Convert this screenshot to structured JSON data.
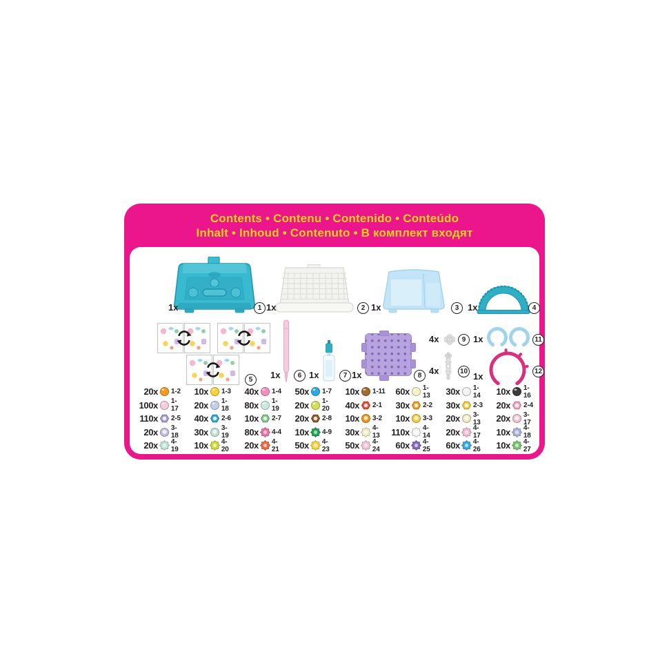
{
  "header": {
    "line1": "Contents • Contenu • Contenido • Conteúdo",
    "line2": "Inhalt • Inhoud • Contenuto • В комплект входят"
  },
  "colors": {
    "card_pink": "#EC168C",
    "header_yellow": "#FFD21E",
    "ink": "#231F20",
    "machine_teal": "#35B8CF",
    "teal_dark": "#1D94AC",
    "tray_white": "#F3F3F0",
    "case_blue": "#C3E5F7",
    "pegboard_purple": "#B7A3DE",
    "pen_pink": "#F4CCDE",
    "ring_blue": "#9FD4EC",
    "band_pink": "#D6317E",
    "part_gray": "#DCDCDC"
  },
  "products": [
    {
      "num": "1",
      "count": "1x",
      "name": "bead-machine-case"
    },
    {
      "num": "2",
      "count": "1x",
      "name": "bead-storage-tray"
    },
    {
      "num": "3",
      "count": "1x",
      "name": "carry-case"
    },
    {
      "num": "4",
      "count": "1x",
      "name": "arch-display-stand"
    },
    {
      "num": "5",
      "count": "",
      "name": "double-sided-template-sheets"
    },
    {
      "num": "6",
      "count": "1x",
      "name": "bead-pen"
    },
    {
      "num": "7",
      "count": "1x",
      "name": "water-sprayer"
    },
    {
      "num": "8",
      "count": "1x",
      "name": "layout-pegboard"
    },
    {
      "num": "9",
      "count": "4x",
      "name": "small-flower-part"
    },
    {
      "num": "10",
      "count": "4x",
      "name": "connector-part"
    },
    {
      "num": "11",
      "count": "1x",
      "name": "ring-bases"
    },
    {
      "num": "12",
      "count": "1x",
      "name": "tiara-band"
    }
  ],
  "beads": [
    {
      "count": "20x",
      "code": "1-2",
      "shape": "round",
      "color": "#F49B20"
    },
    {
      "count": "10x",
      "code": "1-3",
      "shape": "round",
      "color": "#FBD23B"
    },
    {
      "count": "40x",
      "code": "1-4",
      "shape": "round",
      "color": "#F290BC"
    },
    {
      "count": "50x",
      "code": "1-7",
      "shape": "round",
      "color": "#2FA9E1"
    },
    {
      "count": "10x",
      "code": "1-11",
      "shape": "round",
      "color": "#9F6A33"
    },
    {
      "count": "60x",
      "code": "1-13",
      "shape": "round",
      "color": "#F6F0C5"
    },
    {
      "count": "30x",
      "code": "1-14",
      "shape": "round",
      "color": "#F2F2F2"
    },
    {
      "count": "10x",
      "code": "1-16",
      "shape": "round",
      "color": "#3B3B3B"
    },
    {
      "count": "100x",
      "code": "1-17",
      "shape": "round",
      "color": "#F7CBDD"
    },
    {
      "count": "20x",
      "code": "1-18",
      "shape": "round",
      "color": "#C6CDE6"
    },
    {
      "count": "80x",
      "code": "1-19",
      "shape": "round",
      "color": "#CFE8DE"
    },
    {
      "count": "20x",
      "code": "1-20",
      "shape": "round",
      "color": "#D5DF56"
    },
    {
      "count": "40x",
      "code": "2-1",
      "shape": "jewel",
      "color": "#E94F35"
    },
    {
      "count": "30x",
      "code": "2-2",
      "shape": "jewel",
      "color": "#F59D1F"
    },
    {
      "count": "30x",
      "code": "2-3",
      "shape": "jewel",
      "color": "#F6CE3B"
    },
    {
      "count": "20x",
      "code": "2-4",
      "shape": "jewel",
      "color": "#F2A3C3"
    },
    {
      "count": "110x",
      "code": "2-5",
      "shape": "jewel",
      "color": "#A99FD6"
    },
    {
      "count": "40x",
      "code": "2-6",
      "shape": "jewel",
      "color": "#2FA9E1"
    },
    {
      "count": "10x",
      "code": "2-7",
      "shape": "jewel",
      "color": "#7ECC83"
    },
    {
      "count": "20x",
      "code": "2-8",
      "shape": "jewel",
      "color": "#8E5B2B"
    },
    {
      "count": "10x",
      "code": "3-2",
      "shape": "pearl",
      "color": "#F0941E"
    },
    {
      "count": "10x",
      "code": "3-3",
      "shape": "pearl",
      "color": "#F6CB45"
    },
    {
      "count": "20x",
      "code": "3-13",
      "shape": "pearl",
      "color": "#EDE8C0"
    },
    {
      "count": "20x",
      "code": "3-17",
      "shape": "pearl",
      "color": "#F0C3CF"
    },
    {
      "count": "20x",
      "code": "3-18",
      "shape": "pearl",
      "color": "#C3BEE2"
    },
    {
      "count": "30x",
      "code": "3-19",
      "shape": "pearl",
      "color": "#BFE1D6"
    },
    {
      "count": "80x",
      "code": "4-4",
      "shape": "polygon",
      "color": "#F0709F"
    },
    {
      "count": "10x",
      "code": "4-9",
      "shape": "polygon",
      "color": "#1FA352"
    },
    {
      "count": "30x",
      "code": "4-13",
      "shape": "polygon",
      "color": "#F3EFC5"
    },
    {
      "count": "110x",
      "code": "4-14",
      "shape": "polygon",
      "color": "#F5F5F5"
    },
    {
      "count": "20x",
      "code": "4-17",
      "shape": "polygon",
      "color": "#F3B9D0"
    },
    {
      "count": "10x",
      "code": "4-18",
      "shape": "polygon",
      "color": "#ABB1DD"
    },
    {
      "count": "20x",
      "code": "4-19",
      "shape": "polygon",
      "color": "#BFE2D9"
    },
    {
      "count": "10x",
      "code": "4-20",
      "shape": "polygon",
      "color": "#CBDB37"
    },
    {
      "count": "20x",
      "code": "4-21",
      "shape": "polygon",
      "color": "#EE6A3D"
    },
    {
      "count": "50x",
      "code": "4-23",
      "shape": "polygon",
      "color": "#F6D640"
    },
    {
      "count": "50x",
      "code": "4-24",
      "shape": "polygon",
      "color": "#F3C4D9"
    },
    {
      "count": "60x",
      "code": "4-25",
      "shape": "polygon",
      "color": "#8667BB"
    },
    {
      "count": "60x",
      "code": "4-26",
      "shape": "polygon",
      "color": "#36A7DF"
    },
    {
      "count": "10x",
      "code": "4-27",
      "shape": "polygon",
      "color": "#7BC370"
    }
  ]
}
